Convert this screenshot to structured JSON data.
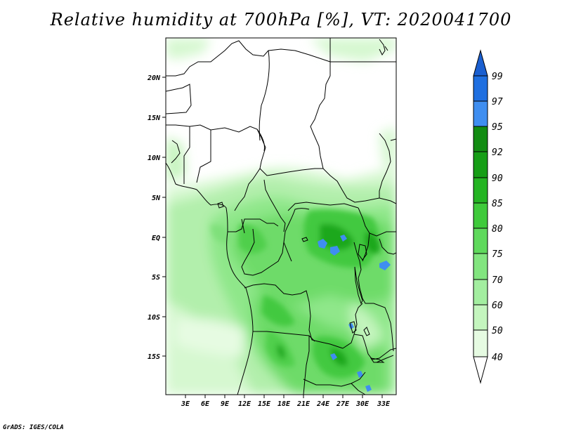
{
  "title": "Relative humidity at 700hPa [%], VT: 2020041700",
  "credit": "GrADS: IGES/COLA",
  "map": {
    "lon_ticks": [
      "3E",
      "6E",
      "9E",
      "12E",
      "15E",
      "18E",
      "21E",
      "24E",
      "27E",
      "30E",
      "33E"
    ],
    "lat_ticks": [
      "20N",
      "15N",
      "10N",
      "5N",
      "EQ",
      "5S",
      "10S",
      "15S"
    ]
  },
  "colorbar": {
    "levels": [
      "40",
      "50",
      "60",
      "70",
      "75",
      "80",
      "85",
      "90",
      "92",
      "95",
      "97",
      "99"
    ],
    "colors": [
      "#ffffff",
      "#e6fbe2",
      "#c4f5be",
      "#a3eea0",
      "#82e57f",
      "#5fd95c",
      "#3fca3b",
      "#24b422",
      "#169e16",
      "#128c12",
      "#3f8ef0",
      "#1f6fe0",
      "#1a5fd0"
    ]
  }
}
